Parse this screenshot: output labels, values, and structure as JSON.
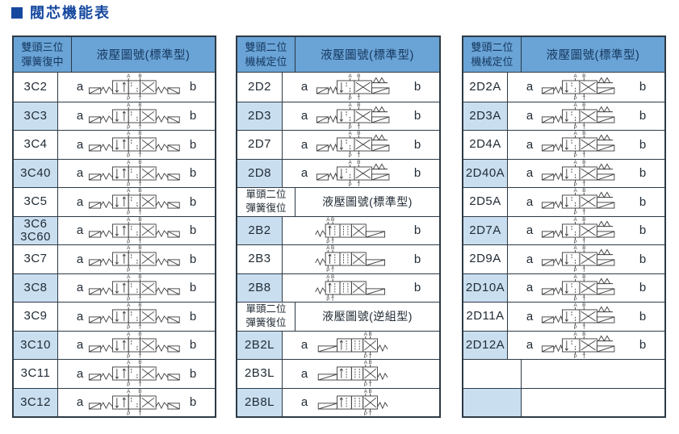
{
  "page": {
    "title": "閥芯機能表"
  },
  "colors": {
    "accent": "#16489F",
    "header_bg": "#6AA3D5",
    "header_text": "#14375F",
    "row_shade": "#C9DFF0",
    "border": "#2D3A45",
    "text": "#222C36",
    "diagram_line": "#3A3A3A"
  },
  "valve_ports": {
    "a": "A",
    "b": "B",
    "p": "P",
    "t": "T"
  },
  "tables": [
    {
      "name": "double-head-3-position-spring-centered",
      "header": {
        "col1": "雙頭三位\n彈簧復中",
        "col2": "液壓圖號(標準型)"
      },
      "rows": [
        {
          "type": "model",
          "model": "3C2",
          "left": "a",
          "right": "b",
          "diagram": "3pos"
        },
        {
          "type": "model",
          "model": "3C3",
          "left": "a",
          "right": "b",
          "diagram": "3pos"
        },
        {
          "type": "model",
          "model": "3C4",
          "left": "a",
          "right": "b",
          "diagram": "3pos"
        },
        {
          "type": "model",
          "model": "3C40",
          "left": "a",
          "right": "b",
          "diagram": "3pos"
        },
        {
          "type": "model",
          "model": "3C5",
          "left": "a",
          "right": "b",
          "diagram": "3pos"
        },
        {
          "type": "model",
          "model": "3C6\n3C60",
          "left": "a",
          "right": "b",
          "diagram": "3pos"
        },
        {
          "type": "model",
          "model": "3C7",
          "left": "a",
          "right": "b",
          "diagram": "3pos"
        },
        {
          "type": "model",
          "model": "3C8",
          "left": "a",
          "right": "b",
          "diagram": "3pos"
        },
        {
          "type": "model",
          "model": "3C9",
          "left": "a",
          "right": "b",
          "diagram": "3pos"
        },
        {
          "type": "model",
          "model": "3C10",
          "left": "a",
          "right": "b",
          "diagram": "3pos"
        },
        {
          "type": "model",
          "model": "3C11",
          "left": "a",
          "right": "b",
          "diagram": "3pos"
        },
        {
          "type": "model",
          "model": "3C12",
          "left": "a",
          "right": "b",
          "diagram": "3pos"
        }
      ]
    },
    {
      "name": "double-head-2-position-mechanical",
      "header": {
        "col1": "雙頭二位\n機械定位",
        "col2": "液壓圖號(標準型)"
      },
      "rows": [
        {
          "type": "model",
          "model": "2D2",
          "left": "a",
          "right": "b",
          "diagram": "2pos"
        },
        {
          "type": "model",
          "model": "2D3",
          "left": "a",
          "right": "b",
          "diagram": "2pos"
        },
        {
          "type": "model",
          "model": "2D7",
          "left": "a",
          "right": "b",
          "diagram": "2pos"
        },
        {
          "type": "model",
          "model": "2D8",
          "left": "a",
          "right": "b",
          "diagram": "2pos"
        },
        {
          "type": "subheader",
          "col1": "單頭二位\n彈簧復位",
          "col2": "液壓圖號(標準型)"
        },
        {
          "type": "model",
          "model": "2B2",
          "left": "",
          "right": "b",
          "diagram": "2b"
        },
        {
          "type": "model",
          "model": "2B3",
          "left": "",
          "right": "b",
          "diagram": "2b"
        },
        {
          "type": "model",
          "model": "2B8",
          "left": "",
          "right": "b",
          "diagram": "2b"
        },
        {
          "type": "subheader",
          "col1": "單頭二位\n彈簧復位",
          "col2": "液壓圖號(逆組型)"
        },
        {
          "type": "model",
          "model": "2B2L",
          "left": "a",
          "right": "",
          "diagram": "2bl"
        },
        {
          "type": "model",
          "model": "2B3L",
          "left": "a",
          "right": "",
          "diagram": "2bl"
        },
        {
          "type": "model",
          "model": "2B8L",
          "left": "a",
          "right": "",
          "diagram": "2bl"
        }
      ]
    },
    {
      "name": "double-head-2-position-mechanical-a",
      "header": {
        "col1": "雙頭二位\n機械定位",
        "col2": "液壓圖號(標準型)"
      },
      "rows": [
        {
          "type": "model",
          "model": "2D2A",
          "left": "a",
          "right": "b",
          "diagram": "2pos"
        },
        {
          "type": "model",
          "model": "2D3A",
          "left": "a",
          "right": "b",
          "diagram": "2pos"
        },
        {
          "type": "model",
          "model": "2D4A",
          "left": "a",
          "right": "b",
          "diagram": "2pos"
        },
        {
          "type": "model",
          "model": "2D40A",
          "left": "a",
          "right": "b",
          "diagram": "2pos"
        },
        {
          "type": "model",
          "model": "2D5A",
          "left": "a",
          "right": "b",
          "diagram": "2pos"
        },
        {
          "type": "model",
          "model": "2D7A",
          "left": "a",
          "right": "b",
          "diagram": "2pos"
        },
        {
          "type": "model",
          "model": "2D9A",
          "left": "a",
          "right": "b",
          "diagram": "2pos"
        },
        {
          "type": "model",
          "model": "2D10A",
          "left": "a",
          "right": "b",
          "diagram": "2pos"
        },
        {
          "type": "model",
          "model": "2D11A",
          "left": "a",
          "right": "b",
          "diagram": "2pos"
        },
        {
          "type": "model",
          "model": "2D12A",
          "left": "a",
          "right": "b",
          "diagram": "2pos"
        },
        {
          "type": "empty"
        },
        {
          "type": "empty"
        }
      ]
    }
  ]
}
